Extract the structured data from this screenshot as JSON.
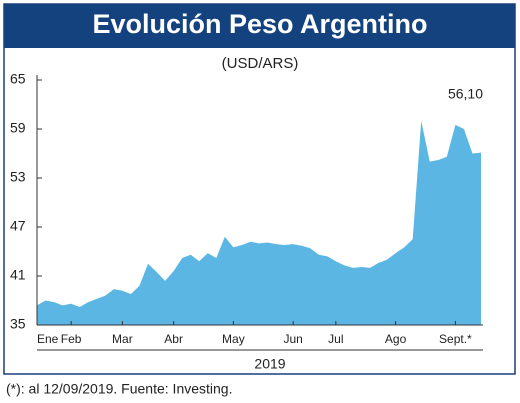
{
  "chart_data": {
    "type": "area",
    "title": "Evolución Peso Argentino",
    "subtitle": "(USD/ARS)",
    "x_label": "2019",
    "footnote": "(*): al 12/09/2019. Fuente: Investing.",
    "color": "#5cb6e4",
    "categories": [
      "Ene",
      null,
      null,
      null,
      "Feb",
      null,
      null,
      null,
      null,
      null,
      "Mar",
      null,
      null,
      null,
      null,
      null,
      "Abr",
      null,
      null,
      null,
      null,
      null,
      null,
      "May",
      null,
      null,
      null,
      null,
      null,
      null,
      "Jun",
      null,
      null,
      null,
      null,
      "Jul",
      null,
      null,
      null,
      null,
      null,
      null,
      "Ago",
      null,
      null,
      null,
      null,
      null,
      null,
      "Sept.*",
      null,
      null,
      null
    ],
    "values": [
      37.4,
      38.0,
      37.8,
      37.4,
      37.6,
      37.2,
      37.8,
      38.2,
      38.6,
      39.4,
      39.2,
      38.8,
      39.8,
      42.5,
      41.5,
      40.4,
      41.6,
      43.2,
      43.6,
      42.8,
      43.8,
      43.2,
      45.8,
      44.5,
      44.8,
      45.2,
      45.0,
      45.1,
      44.9,
      44.8,
      44.9,
      44.7,
      44.4,
      43.6,
      43.4,
      42.8,
      42.3,
      42.0,
      42.1,
      42.0,
      42.6,
      43.0,
      43.8,
      44.5,
      45.5,
      60.0,
      55.0,
      55.2,
      55.6,
      59.5,
      59.0,
      56.0,
      56.1
    ],
    "value_labels": [
      null,
      null,
      null,
      null,
      null,
      null,
      null,
      null,
      null,
      null,
      null,
      null,
      null,
      null,
      null,
      null,
      null,
      null,
      null,
      null,
      null,
      null,
      null,
      null,
      null,
      null,
      null,
      null,
      null,
      null,
      null,
      null,
      null,
      null,
      null,
      null,
      null,
      null,
      null,
      null,
      null,
      null,
      null,
      null,
      null,
      null,
      null,
      null,
      null,
      null,
      null,
      null,
      "56,10"
    ],
    "ylim": [
      35,
      65
    ],
    "yticks": [
      35,
      41,
      47,
      53,
      59,
      65
    ]
  }
}
